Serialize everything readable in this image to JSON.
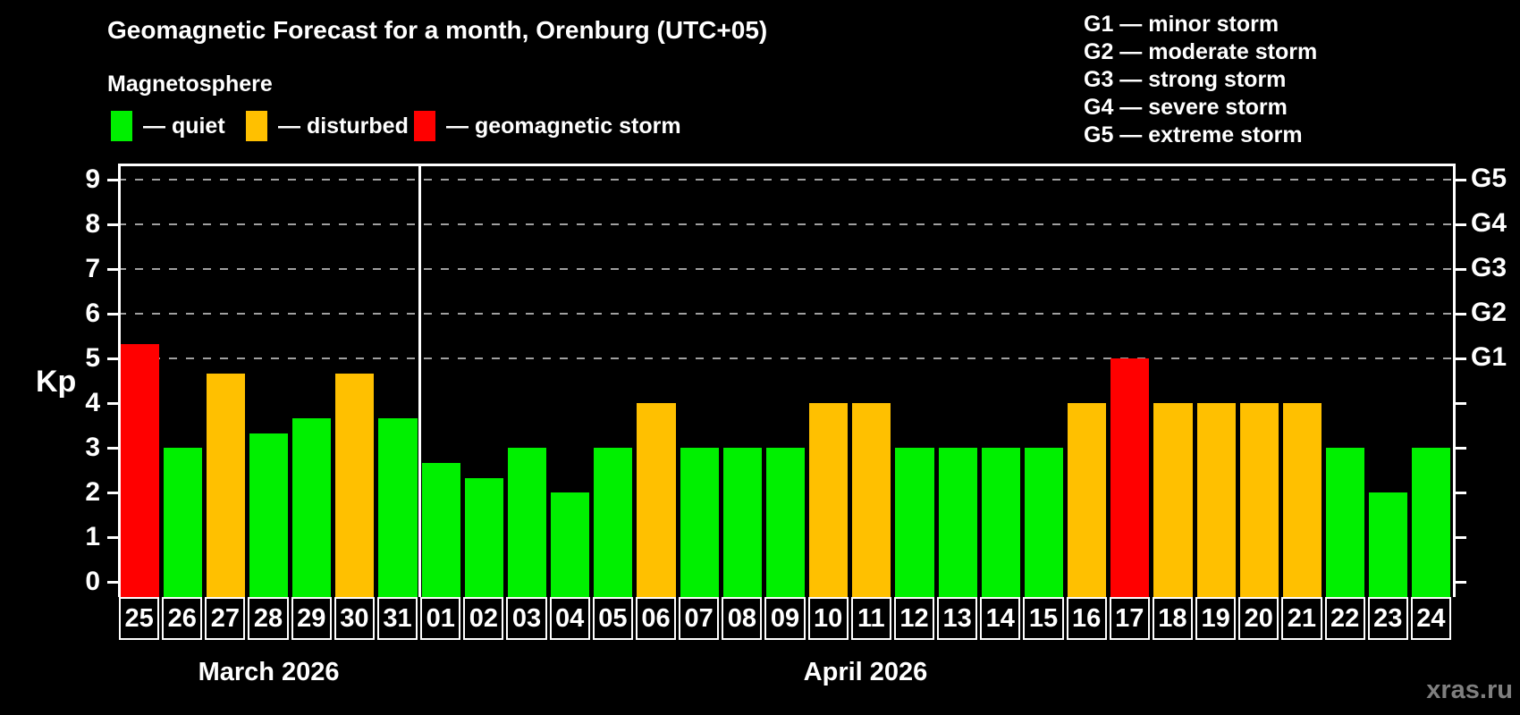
{
  "header": {
    "title": "Geomagnetic Forecast for a month, Orenburg (UTC+05)",
    "subtitle": "Magnetosphere",
    "legend": [
      {
        "name": "quiet",
        "color": "#00f000",
        "label": "— quiet"
      },
      {
        "name": "disturbed",
        "color": "#ffc000",
        "label": "— disturbed"
      },
      {
        "name": "storm",
        "color": "#ff0000",
        "label": "— geomagnetic storm"
      }
    ],
    "g_scale_legend": [
      "G1 — minor storm",
      "G2 — moderate storm",
      "G3 — strong storm",
      "G4 — severe storm",
      "G5 — extreme storm"
    ]
  },
  "watermark": "xras.ru",
  "chart_data": {
    "type": "bar",
    "y_axis_label": "Kp",
    "y_ticks": [
      0,
      1,
      2,
      3,
      4,
      5,
      6,
      7,
      8,
      9
    ],
    "ylim": [
      -0.34,
      9.36
    ],
    "gridlines_at": [
      5,
      6,
      7,
      8,
      9
    ],
    "right_axis_labels": {
      "5": "G1",
      "6": "G2",
      "7": "G3",
      "8": "G4",
      "9": "G5"
    },
    "grid_color": "#a0a0a0",
    "status_colors": {
      "quiet": "#00f000",
      "disturbed": "#ffc000",
      "storm": "#ff0000"
    },
    "months": [
      {
        "label": "March 2026",
        "days": [
          {
            "day": "25",
            "kp": 5.33,
            "status": "storm"
          },
          {
            "day": "26",
            "kp": 3.0,
            "status": "quiet"
          },
          {
            "day": "27",
            "kp": 4.67,
            "status": "disturbed"
          },
          {
            "day": "28",
            "kp": 3.33,
            "status": "quiet"
          },
          {
            "day": "29",
            "kp": 3.67,
            "status": "quiet"
          },
          {
            "day": "30",
            "kp": 4.67,
            "status": "disturbed"
          },
          {
            "day": "31",
            "kp": 3.67,
            "status": "quiet"
          }
        ]
      },
      {
        "label": "April 2026",
        "days": [
          {
            "day": "01",
            "kp": 2.67,
            "status": "quiet"
          },
          {
            "day": "02",
            "kp": 2.33,
            "status": "quiet"
          },
          {
            "day": "03",
            "kp": 3.0,
            "status": "quiet"
          },
          {
            "day": "04",
            "kp": 2.0,
            "status": "quiet"
          },
          {
            "day": "05",
            "kp": 3.0,
            "status": "quiet"
          },
          {
            "day": "06",
            "kp": 4.0,
            "status": "disturbed"
          },
          {
            "day": "07",
            "kp": 3.0,
            "status": "quiet"
          },
          {
            "day": "08",
            "kp": 3.0,
            "status": "quiet"
          },
          {
            "day": "09",
            "kp": 3.0,
            "status": "quiet"
          },
          {
            "day": "10",
            "kp": 4.0,
            "status": "disturbed"
          },
          {
            "day": "11",
            "kp": 4.0,
            "status": "disturbed"
          },
          {
            "day": "12",
            "kp": 3.0,
            "status": "quiet"
          },
          {
            "day": "13",
            "kp": 3.0,
            "status": "quiet"
          },
          {
            "day": "14",
            "kp": 3.0,
            "status": "quiet"
          },
          {
            "day": "15",
            "kp": 3.0,
            "status": "quiet"
          },
          {
            "day": "16",
            "kp": 4.0,
            "status": "disturbed"
          },
          {
            "day": "17",
            "kp": 5.0,
            "status": "storm"
          },
          {
            "day": "18",
            "kp": 4.0,
            "status": "disturbed"
          },
          {
            "day": "19",
            "kp": 4.0,
            "status": "disturbed"
          },
          {
            "day": "20",
            "kp": 4.0,
            "status": "disturbed"
          },
          {
            "day": "21",
            "kp": 4.0,
            "status": "disturbed"
          },
          {
            "day": "22",
            "kp": 3.0,
            "status": "quiet"
          },
          {
            "day": "23",
            "kp": 2.0,
            "status": "quiet"
          },
          {
            "day": "24",
            "kp": 3.0,
            "status": "quiet"
          }
        ]
      }
    ]
  }
}
